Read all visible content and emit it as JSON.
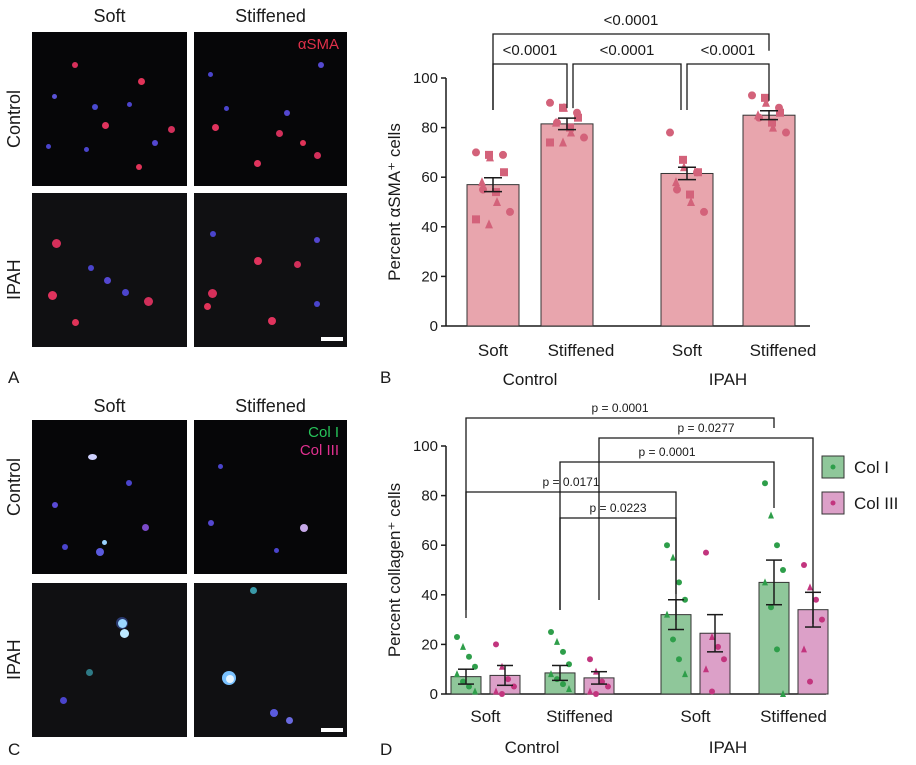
{
  "panels": {
    "a": {
      "letter": "A",
      "col_soft": "Soft",
      "col_stiff": "Stiffened",
      "row_control": "Control",
      "row_ipah": "IPAH",
      "stain": "αSMA",
      "stain_color": "#e0304a"
    },
    "b": {
      "letter": "B"
    },
    "c": {
      "letter": "C",
      "col_soft": "Soft",
      "col_stiff": "Stiffened",
      "row_control": "Control",
      "row_ipah": "IPAH",
      "stain1": "Col I",
      "stain1_color": "#27c45a",
      "stain2": "Col III",
      "stain2_color": "#e0308f"
    },
    "d": {
      "letter": "D"
    }
  },
  "chart_data": [
    {
      "panel": "B",
      "type": "bar",
      "categories": [
        "Soft",
        "Stiffened",
        "Soft",
        "Stiffened"
      ],
      "groups": [
        "Control",
        "IPAH"
      ],
      "ylabel": "Percent αSMA⁺ cells",
      "ylim": [
        0,
        100
      ],
      "yticks": [
        0,
        20,
        40,
        60,
        80,
        100
      ],
      "bar_color": "#e8a5ad",
      "point_color": "#d3627a",
      "series": [
        {
          "values": [
            57,
            81.5,
            61.5,
            85
          ],
          "sem": [
            2.8,
            2.3,
            2.5,
            1.8
          ],
          "points": [
            [
              70,
              69,
              68,
              69,
              62,
              58,
              55,
              54,
              50,
              46,
              43,
              41
            ],
            [
              90,
              88,
              88,
              86,
              84,
              82,
              82,
              80,
              78,
              76,
              74,
              74
            ],
            [
              78,
              67,
              64,
              62,
              62,
              58,
              55,
              53,
              50,
              46
            ],
            [
              93,
              92,
              90,
              88,
              86,
              85,
              84,
              82,
              80,
              78
            ]
          ]
        }
      ],
      "comparisons": [
        {
          "from": 0,
          "to": 1,
          "label": "<0.0001"
        },
        {
          "from": 1,
          "to": 2,
          "label": "<0.0001"
        },
        {
          "from": 2,
          "to": 3,
          "label": "<0.0001"
        },
        {
          "from": 0,
          "to": 3,
          "label": "<0.0001"
        }
      ]
    },
    {
      "panel": "D",
      "type": "bar",
      "categories": [
        "Soft",
        "Stiffened",
        "Soft",
        "Stiffened"
      ],
      "groups": [
        "Control",
        "IPAH"
      ],
      "ylabel": "Percent collagen⁺ cells",
      "ylim": [
        0,
        100
      ],
      "yticks": [
        0,
        20,
        40,
        60,
        80,
        100
      ],
      "legend": "right",
      "series": [
        {
          "name": "Col I",
          "color": "#8fc79a",
          "point_color": "#2e9e4a",
          "values": [
            7,
            8.5,
            32,
            45
          ],
          "sem": [
            3,
            3,
            6,
            9
          ],
          "points": [
            [
              23,
              19,
              15,
              11,
              8,
              5,
              3,
              1
            ],
            [
              25,
              21,
              17,
              12,
              8,
              6,
              4,
              2
            ],
            [
              60,
              55,
              45,
              38,
              32,
              22,
              14,
              8
            ],
            [
              85,
              72,
              60,
              50,
              45,
              35,
              18,
              0
            ]
          ]
        },
        {
          "name": "Col III",
          "color": "#dca0c8",
          "point_color": "#c2357e",
          "values": [
            7.5,
            6.5,
            24.5,
            34
          ],
          "sem": [
            4,
            2.5,
            7.5,
            7
          ],
          "points": [
            [
              20,
              11,
              6,
              3,
              1,
              0
            ],
            [
              14,
              9,
              5,
              3,
              1,
              0
            ],
            [
              57,
              23,
              19,
              14,
              10,
              1
            ],
            [
              52,
              43,
              38,
              30,
              18,
              5
            ]
          ]
        }
      ],
      "comparisons": [
        {
          "from": [
            0,
            0
          ],
          "to": [
            2,
            0
          ],
          "label": "p = 0.0171"
        },
        {
          "from": [
            1,
            0
          ],
          "to": [
            2,
            0
          ],
          "label": "p = 0.0223"
        },
        {
          "from": [
            1,
            0
          ],
          "to": [
            3,
            0
          ],
          "label": "p = 0.0001"
        },
        {
          "from": [
            1,
            1
          ],
          "to": [
            3,
            1
          ],
          "label": "p = 0.0277"
        },
        {
          "from": [
            0,
            0
          ],
          "to": [
            3,
            0
          ],
          "label": "p = 0.0001"
        }
      ]
    }
  ]
}
